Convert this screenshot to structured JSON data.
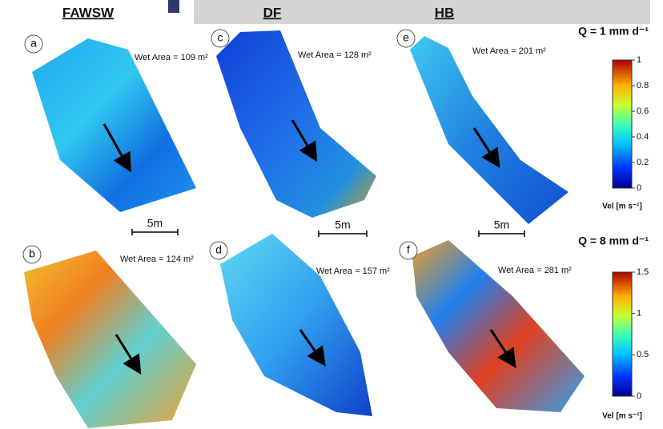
{
  "columns": [
    "FAWSW",
    "DF",
    "HB"
  ],
  "panels": [
    {
      "label": "a",
      "wet_area": "Wet Area = 109 m²"
    },
    {
      "label": "c",
      "wet_area": "Wet Area = 128 m²"
    },
    {
      "label": "e",
      "wet_area": "Wet Area = 201 m²"
    },
    {
      "label": "b",
      "wet_area": "Wet Area = 124 m²"
    },
    {
      "label": "d",
      "wet_area": "Wet Area = 157 m²"
    },
    {
      "label": "f",
      "wet_area": "Wet Area = 281 m²"
    }
  ],
  "scale_bar": "5m",
  "rows": [
    {
      "discharge": "Q = 1 mm d⁻¹",
      "colorbar_ticks": [
        "1",
        "0.8",
        "0.6",
        "0.4",
        "0.2",
        "0"
      ],
      "colorbar_label": "Vel [m s⁻¹]"
    },
    {
      "discharge": "Q = 8 mm d⁻¹",
      "colorbar_ticks": [
        "1.5",
        "1",
        "0.5",
        "0"
      ],
      "colorbar_label": "Vel [m s⁻¹]"
    }
  ]
}
